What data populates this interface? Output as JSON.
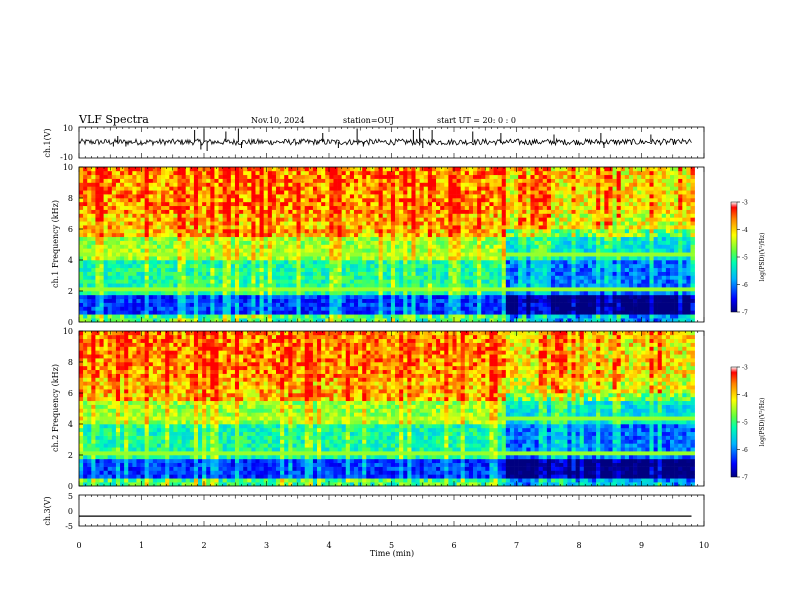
{
  "header": {
    "title": "VLF Spectra",
    "date": "Nov.10, 2024",
    "station": "station=OUJ",
    "start": "start  UT =   20: 0  : 0"
  },
  "chart_data": [
    {
      "type": "line",
      "ylabel": "ch.1(V)",
      "ylim": [
        -10,
        10
      ],
      "yticks": [
        "10",
        "-10"
      ],
      "xlim": [
        0,
        10
      ],
      "description_series": {
        "baseline": 0,
        "noise_amplitude": 2,
        "spikes": [
          {
            "t": 0.55,
            "v": -3
          },
          {
            "t": 0.62,
            "v": 4
          },
          {
            "t": 0.75,
            "v": -3
          },
          {
            "t": 1.85,
            "v": 8
          },
          {
            "t": 1.95,
            "v": -5
          },
          {
            "t": 2.0,
            "v": 9
          },
          {
            "t": 2.05,
            "v": -6
          },
          {
            "t": 2.35,
            "v": 7
          },
          {
            "t": 2.55,
            "v": 9
          },
          {
            "t": 2.6,
            "v": -4
          },
          {
            "t": 3.9,
            "v": 6
          },
          {
            "t": 4.15,
            "v": -4
          },
          {
            "t": 4.45,
            "v": 9
          },
          {
            "t": 4.55,
            "v": -3
          },
          {
            "t": 5.35,
            "v": 8
          },
          {
            "t": 5.45,
            "v": 9
          },
          {
            "t": 5.5,
            "v": -4
          },
          {
            "t": 5.65,
            "v": 8
          },
          {
            "t": 6.3,
            "v": 7
          },
          {
            "t": 6.75,
            "v": 6
          },
          {
            "t": 7.6,
            "v": 5
          },
          {
            "t": 8.35,
            "v": 6
          },
          {
            "t": 8.4,
            "v": -4
          },
          {
            "t": 9.15,
            "v": 5
          }
        ]
      }
    },
    {
      "type": "heatmap",
      "ylabel": "ch.1 Frequency  (kHz)",
      "ylim": [
        0,
        10
      ],
      "yticks": [
        "0",
        "2",
        "4",
        "6",
        "8",
        "10"
      ],
      "xlim": [
        0,
        10
      ],
      "colorbar": {
        "label": "log(PSD)(V²/Hz)",
        "ticks": [
          "-3",
          "-4",
          "-5",
          "-6",
          "-7"
        ],
        "range": [
          -7,
          -3
        ]
      },
      "quiet_zone_minutes": [
        6.8,
        9.8
      ]
    },
    {
      "type": "heatmap",
      "ylabel": "ch.2 Frequency  (kHz)",
      "ylim": [
        0,
        10
      ],
      "yticks": [
        "0",
        "2",
        "4",
        "6",
        "8",
        "10"
      ],
      "xlim": [
        0,
        10
      ],
      "colorbar": {
        "label": "log(PSD)(V²/Hz)",
        "ticks": [
          "-3",
          "-4",
          "-5",
          "-6",
          "-7"
        ],
        "range": [
          -7,
          -3
        ]
      },
      "quiet_zone_minutes": [
        6.8,
        9.8
      ]
    },
    {
      "type": "line",
      "ylabel": "ch.3(V)",
      "ylim": [
        -5,
        5
      ],
      "yticks": [
        "5",
        "0",
        "-5"
      ],
      "xlim": [
        0,
        10
      ],
      "constant_value": -1.7
    }
  ],
  "xaxis": {
    "label": "Time  (min)",
    "ticks": [
      "0",
      "1",
      "2",
      "3",
      "4",
      "5",
      "6",
      "7",
      "8",
      "9",
      "10"
    ]
  }
}
